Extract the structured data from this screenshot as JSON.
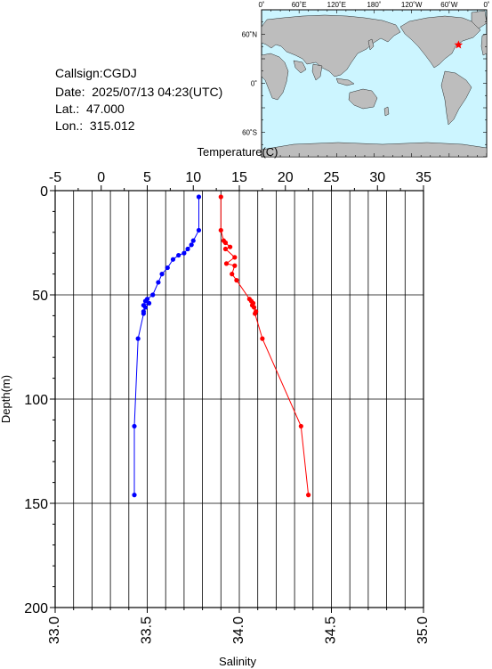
{
  "header": {
    "callsign": "Callsign:CGDJ",
    "date": "Date:  2025/07/13 04:23(UTC)",
    "lat": "Lat.:  47.000",
    "lon": "Lon.:  315.012"
  },
  "map": {
    "ocean_color": "#ccf5ff",
    "land_color": "#bdbdbd",
    "marker_color": "#ff0000",
    "top_labels": [
      "0˚",
      "60˚E",
      "120˚E",
      "180˚",
      "120˚W",
      "60˚W",
      "0˚"
    ],
    "left_labels": [
      "60˚N",
      "0˚",
      "60˚S"
    ],
    "marker": {
      "lon": 315.012,
      "lat": 47.0
    }
  },
  "chart_data": {
    "type": "line",
    "top_axis": {
      "label": "Temperature(C)",
      "range": [
        -5,
        35
      ],
      "ticks": [
        "-5",
        "0",
        "5",
        "10",
        "15",
        "20",
        "25",
        "30",
        "35"
      ]
    },
    "bottom_axis": {
      "label": "Salinity",
      "range": [
        33.0,
        35.0
      ],
      "ticks": [
        "33.0",
        "33.5",
        "34.0",
        "34.5",
        "35.0"
      ]
    },
    "y_axis": {
      "label": "Depth(m)",
      "range": [
        0,
        200
      ],
      "inverted": true,
      "ticks": [
        "0",
        "50",
        "100",
        "150",
        "200"
      ]
    },
    "grid": true,
    "series": [
      {
        "axis": "bottom",
        "color": "#0000ff",
        "points": [
          {
            "x": 33.78,
            "y": 3
          },
          {
            "x": 33.78,
            "y": 19
          },
          {
            "x": 33.75,
            "y": 24
          },
          {
            "x": 33.74,
            "y": 26
          },
          {
            "x": 33.72,
            "y": 28
          },
          {
            "x": 33.7,
            "y": 30
          },
          {
            "x": 33.67,
            "y": 31
          },
          {
            "x": 33.64,
            "y": 33
          },
          {
            "x": 33.61,
            "y": 37
          },
          {
            "x": 33.58,
            "y": 40
          },
          {
            "x": 33.56,
            "y": 44
          },
          {
            "x": 33.53,
            "y": 50
          },
          {
            "x": 33.5,
            "y": 52
          },
          {
            "x": 33.49,
            "y": 53
          },
          {
            "x": 33.51,
            "y": 54
          },
          {
            "x": 33.48,
            "y": 55
          },
          {
            "x": 33.49,
            "y": 56
          },
          {
            "x": 33.48,
            "y": 58
          },
          {
            "x": 33.48,
            "y": 59
          },
          {
            "x": 33.45,
            "y": 71
          },
          {
            "x": 33.43,
            "y": 113
          },
          {
            "x": 33.43,
            "y": 146
          }
        ]
      },
      {
        "axis": "top",
        "color": "#ff0000",
        "points": [
          {
            "x": 13.0,
            "y": 3
          },
          {
            "x": 13.0,
            "y": 19
          },
          {
            "x": 13.3,
            "y": 24
          },
          {
            "x": 13.5,
            "y": 25
          },
          {
            "x": 14.0,
            "y": 27
          },
          {
            "x": 13.5,
            "y": 28
          },
          {
            "x": 14.5,
            "y": 32
          },
          {
            "x": 13.6,
            "y": 35
          },
          {
            "x": 14.5,
            "y": 36
          },
          {
            "x": 14.2,
            "y": 40
          },
          {
            "x": 14.7,
            "y": 43
          },
          {
            "x": 16.1,
            "y": 52
          },
          {
            "x": 16.3,
            "y": 53
          },
          {
            "x": 16.5,
            "y": 54
          },
          {
            "x": 16.4,
            "y": 55
          },
          {
            "x": 16.6,
            "y": 56
          },
          {
            "x": 16.8,
            "y": 58
          },
          {
            "x": 16.7,
            "y": 59
          },
          {
            "x": 17.5,
            "y": 71
          },
          {
            "x": 21.7,
            "y": 113
          },
          {
            "x": 22.5,
            "y": 146
          }
        ]
      }
    ]
  }
}
